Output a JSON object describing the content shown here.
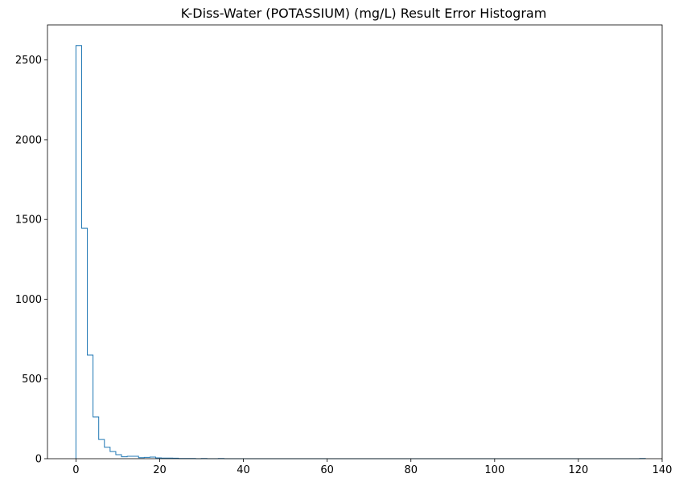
{
  "chart_data": {
    "type": "histogram",
    "title": "K-Diss-Water (POTASSIUM) (mg/L) Result Error Histogram",
    "xlabel": "",
    "ylabel": "",
    "xlim": [
      -6.8,
      140
    ],
    "ylim": [
      0,
      2720
    ],
    "xticks": [
      0,
      20,
      40,
      60,
      80,
      100,
      120,
      140
    ],
    "yticks": [
      0,
      500,
      1000,
      1500,
      2000,
      2500
    ],
    "bin_edges": [
      0,
      1.36,
      2.72,
      4.08,
      5.44,
      6.8,
      8.16,
      9.52,
      10.88,
      12.24,
      13.6,
      14.96,
      16.32,
      17.68,
      19.04,
      20.4,
      21.76,
      23.12,
      24.48,
      25.84,
      27.2,
      28.56,
      29.92,
      31.28,
      32.64,
      34.0,
      35.36,
      36.72,
      38.08,
      39.44,
      40.8,
      42.16,
      43.52,
      44.88,
      46.24,
      47.6,
      48.96,
      50.32,
      51.68,
      53.04,
      54.4,
      55.76,
      57.12,
      58.48,
      59.84,
      61.2,
      62.56,
      63.92,
      65.28,
      66.64,
      68.0,
      69.36,
      70.72,
      72.08,
      73.44,
      74.8,
      76.16,
      77.52,
      78.88,
      80.24,
      81.6,
      82.96,
      84.32,
      85.68,
      87.04,
      88.4,
      89.76,
      91.12,
      92.48,
      93.84,
      95.2,
      96.56,
      97.92,
      99.28,
      100.64,
      102.0,
      103.36,
      104.72,
      106.08,
      107.44,
      108.8,
      110.16,
      111.52,
      112.88,
      114.24,
      115.6,
      116.96,
      118.32,
      119.68,
      121.04,
      122.4,
      123.76,
      125.12,
      126.48,
      127.84,
      129.2,
      130.56,
      131.92,
      133.28,
      134.64,
      136.0
    ],
    "counts": [
      2590,
      1445,
      650,
      262,
      120,
      72,
      45,
      25,
      12,
      15,
      15,
      6,
      8,
      10,
      5,
      4,
      4,
      3,
      1,
      1,
      1,
      0,
      1,
      0,
      0,
      1,
      0,
      0,
      0,
      0,
      0,
      0,
      0,
      0,
      0,
      0,
      0,
      0,
      0,
      0,
      0,
      0,
      0,
      0,
      0,
      0,
      0,
      0,
      0,
      0,
      0,
      0,
      0,
      0,
      0,
      0,
      0,
      0,
      0,
      0,
      0,
      0,
      0,
      0,
      0,
      0,
      0,
      0,
      0,
      0,
      0,
      0,
      0,
      0,
      0,
      0,
      0,
      0,
      0,
      0,
      0,
      0,
      0,
      0,
      0,
      0,
      0,
      0,
      0,
      0,
      0,
      0,
      0,
      0,
      0,
      0,
      0,
      0,
      0,
      1
    ],
    "histtype": "step",
    "line_color": "#1f77b4",
    "grid": false,
    "legend": "none"
  }
}
